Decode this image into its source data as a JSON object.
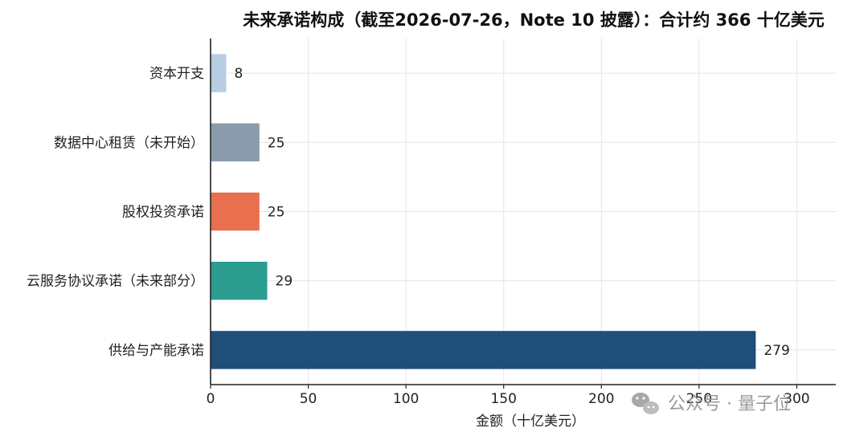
{
  "chart_data": {
    "type": "bar",
    "orientation": "horizontal",
    "title": "未来承诺构成（截至2026-07-26，Note 10 披露）：合计约 366 十亿美元",
    "xlabel": "金额（十亿美元）",
    "ylabel": "",
    "xlim": [
      0,
      320
    ],
    "xticks": [
      0,
      50,
      100,
      150,
      200,
      250,
      300
    ],
    "grid": true,
    "categories": [
      "资本开支",
      "数据中心租赁（未开始）",
      "股权投资承诺",
      "云服务协议承诺（未来部分）",
      "供给与产能承诺"
    ],
    "values": [
      8,
      25,
      25,
      29,
      279
    ],
    "colors": [
      "#b8cde4",
      "#8a9bab",
      "#e8704f",
      "#2a9d8f",
      "#1f4e79"
    ]
  },
  "watermark": {
    "icon": "wechat-icon",
    "text": "公众号 · 量子位"
  }
}
